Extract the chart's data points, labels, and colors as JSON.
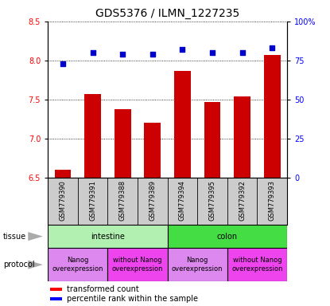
{
  "title": "GDS5376 / ILMN_1227235",
  "samples": [
    "GSM779390",
    "GSM779391",
    "GSM779388",
    "GSM779389",
    "GSM779394",
    "GSM779395",
    "GSM779392",
    "GSM779393"
  ],
  "red_values": [
    6.6,
    7.57,
    7.38,
    7.2,
    7.87,
    7.47,
    7.54,
    8.07
  ],
  "blue_values": [
    73,
    80,
    79,
    79,
    82,
    80,
    80,
    83
  ],
  "ylim_left": [
    6.5,
    8.5
  ],
  "ylim_right": [
    0,
    100
  ],
  "yticks_left": [
    6.5,
    7.0,
    7.5,
    8.0,
    8.5
  ],
  "yticks_right": [
    0,
    25,
    50,
    75,
    100
  ],
  "ytick_right_labels": [
    "0",
    "25",
    "50",
    "75",
    "100%"
  ],
  "tissue_groups": [
    {
      "label": "intestine",
      "start": 0,
      "end": 3,
      "color": "#b2f0b2"
    },
    {
      "label": "colon",
      "start": 4,
      "end": 7,
      "color": "#44dd44"
    }
  ],
  "protocol_groups": [
    {
      "label": "Nanog\noverexpression",
      "start": 0,
      "end": 1,
      "color": "#dd88ee"
    },
    {
      "label": "without Nanog\noverexpression",
      "start": 2,
      "end": 3,
      "color": "#ee44ee"
    },
    {
      "label": "Nanog\noverexpression",
      "start": 4,
      "end": 5,
      "color": "#dd88ee"
    },
    {
      "label": "without Nanog\noverexpression",
      "start": 6,
      "end": 7,
      "color": "#ee44ee"
    }
  ],
  "bar_color": "#cc0000",
  "dot_color": "#0000cc",
  "sample_box_color": "#cccccc",
  "background_color": "#ffffff",
  "title_fontsize": 10,
  "tick_fontsize": 7,
  "sample_fontsize": 6,
  "annot_fontsize": 7,
  "legend_fontsize": 7,
  "proto_fontsize": 6
}
